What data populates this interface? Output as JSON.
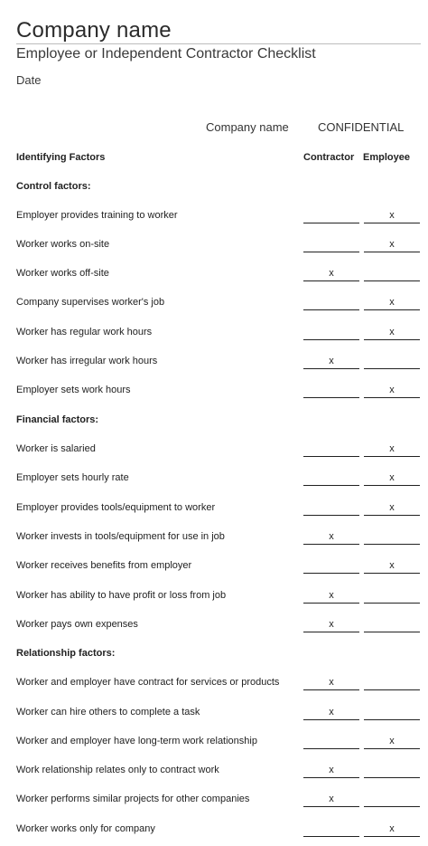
{
  "header": {
    "company_name": "Company name",
    "subtitle": "Employee or Independent Contractor Checklist",
    "date_label": "Date",
    "right_company": "Company name",
    "confidential": "CONFIDENTIAL"
  },
  "columns": {
    "identifying": "Identifying Factors",
    "contractor": "Contractor",
    "employee": "Employee"
  },
  "sections": {
    "control": "Control factors:",
    "financial": "Financial factors:",
    "relationship": "Relationship factors:"
  },
  "rows": [
    {
      "label": "Employer provides training to worker",
      "contractor": "",
      "employee": "x"
    },
    {
      "label": "Worker works on-site",
      "contractor": "",
      "employee": "x"
    },
    {
      "label": "Worker works off-site",
      "contractor": "x",
      "employee": ""
    },
    {
      "label": "Company supervises worker's job",
      "contractor": "",
      "employee": "x"
    },
    {
      "label": "Worker has regular work hours",
      "contractor": "",
      "employee": "x"
    },
    {
      "label": "Worker has irregular work hours",
      "contractor": "x",
      "employee": ""
    },
    {
      "label": "Employer sets work hours",
      "contractor": "",
      "employee": "x"
    },
    {
      "label": "Worker is salaried",
      "contractor": "",
      "employee": "x"
    },
    {
      "label": "Employer sets hourly rate",
      "contractor": "",
      "employee": "x"
    },
    {
      "label": "Employer provides tools/equipment to worker",
      "contractor": "",
      "employee": "x"
    },
    {
      "label": "Worker invests in tools/equipment for use in job",
      "contractor": "x",
      "employee": ""
    },
    {
      "label": "Worker receives benefits from employer",
      "contractor": "",
      "employee": "x"
    },
    {
      "label": "Worker has ability to have profit or loss from job",
      "contractor": "x",
      "employee": ""
    },
    {
      "label": "Worker pays own expenses",
      "contractor": "x",
      "employee": ""
    },
    {
      "label": "Worker and employer have contract for services or products",
      "contractor": "x",
      "employee": ""
    },
    {
      "label": "Worker can hire others to complete a task",
      "contractor": "x",
      "employee": ""
    },
    {
      "label": "Worker and employer have long-term work relationship",
      "contractor": "",
      "employee": "x"
    },
    {
      "label": "Work relationship relates only to contract work",
      "contractor": "x",
      "employee": ""
    },
    {
      "label": "Worker performs similar projects for other companies",
      "contractor": "x",
      "employee": ""
    },
    {
      "label": "Worker works only for company",
      "contractor": "",
      "employee": "x"
    }
  ]
}
